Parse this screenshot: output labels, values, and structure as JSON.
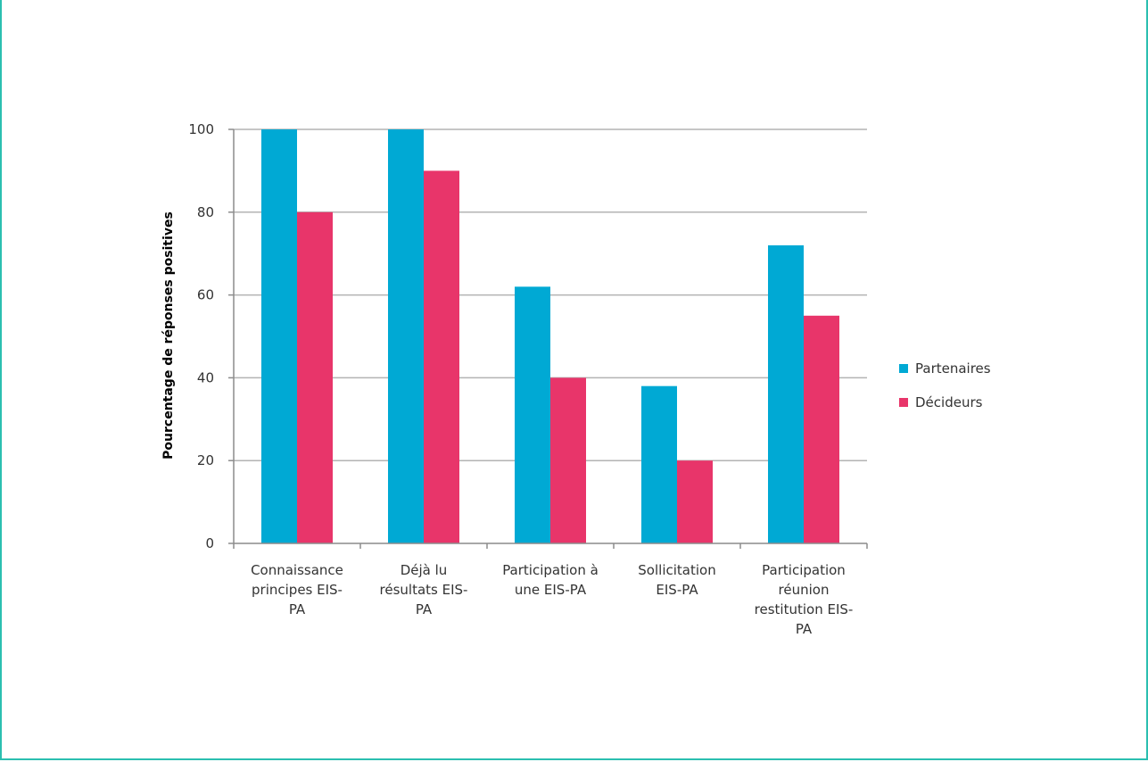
{
  "chart_data": {
    "type": "bar",
    "categories": [
      [
        "Connaissance",
        "principes EIS-",
        "PA"
      ],
      [
        "Déjà lu",
        "résultats EIS-",
        "PA"
      ],
      [
        "Participation à",
        "une EIS-PA"
      ],
      [
        "Sollicitation",
        "EIS-PA"
      ],
      [
        "Participation",
        "réunion",
        "restitution EIS-",
        "PA"
      ]
    ],
    "series": [
      {
        "name": "Partenaires",
        "color": "#00a9d4",
        "values": [
          100,
          100,
          62,
          38,
          72
        ]
      },
      {
        "name": "Décideurs",
        "color": "#e8356a",
        "values": [
          80,
          90,
          40,
          20,
          55
        ]
      }
    ],
    "ylabel": "Pourcentage de réponses positives",
    "ylim": [
      0,
      100
    ],
    "yticks": [
      0,
      20,
      40,
      60,
      80,
      100
    ],
    "grid": true,
    "legend_position": "right"
  }
}
